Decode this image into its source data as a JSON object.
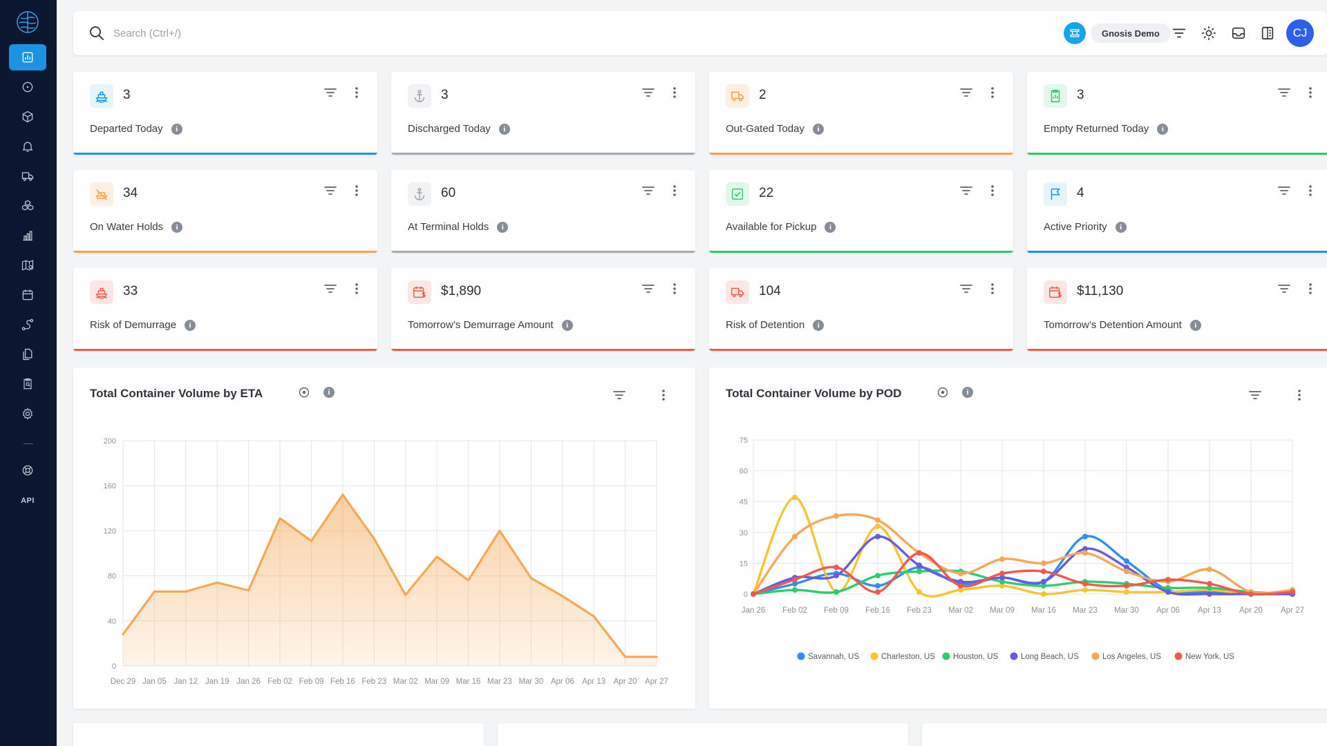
{
  "search": {
    "placeholder": "Search (Ctrl+/)"
  },
  "topbar": {
    "workspace": "Gnosis Demo",
    "avatar_initials": "CJ"
  },
  "sidebar": {
    "items": [
      "dashboard-icon",
      "compass-icon",
      "box-icon",
      "bell-icon",
      "truck-icon",
      "containers-icon",
      "bar-chart-icon",
      "map-search-icon",
      "calendar-icon",
      "route-icon",
      "documents-icon",
      "clipboard-search-icon",
      "gear-icon",
      "support-icon"
    ],
    "api_label": "API"
  },
  "kpis": [
    {
      "value": "3",
      "label": "Departed Today",
      "color": "#1b93e0",
      "icon": "ship-icon",
      "tint": "#e6f4fc"
    },
    {
      "value": "3",
      "label": "Discharged Today",
      "color": "#a5a9b0",
      "icon": "anchor-icon",
      "tint": "#f1f2f4"
    },
    {
      "value": "2",
      "label": "Out-Gated Today",
      "color": "#f5a24a",
      "icon": "truck-icon",
      "tint": "#fdf0e2"
    },
    {
      "value": "3",
      "label": "Empty Returned Today",
      "color": "#2ec76a",
      "icon": "clipboard-icon",
      "tint": "#e3f7ea"
    },
    {
      "value": "34",
      "label": "On Water Holds",
      "color": "#f5a24a",
      "icon": "ship-hold-icon",
      "tint": "#fdf0e2"
    },
    {
      "value": "60",
      "label": "At Terminal Holds",
      "color": "#a5a9b0",
      "icon": "anchor-icon",
      "tint": "#f1f2f4"
    },
    {
      "value": "22",
      "label": "Available for Pickup",
      "color": "#2ec76a",
      "icon": "check-icon",
      "tint": "#e3f7ea"
    },
    {
      "value": "4",
      "label": "Active Priority",
      "color": "#1b93e0",
      "icon": "flag-icon",
      "tint": "#e6f4fc"
    },
    {
      "value": "33",
      "label": "Risk of Demurrage",
      "color": "#ef5a4c",
      "icon": "ship-risk-icon",
      "tint": "#fde7e5"
    },
    {
      "value": "$1,890",
      "label": "Tomorrow’s Demurrage Amount",
      "color": "#ef5a4c",
      "icon": "calendar-dollar-icon",
      "tint": "#fde7e5"
    },
    {
      "value": "104",
      "label": "Risk of Detention",
      "color": "#ef5a4c",
      "icon": "truck-risk-icon",
      "tint": "#fde7e5"
    },
    {
      "value": "$11,130",
      "label": "Tomorrow’s Detention Amount",
      "color": "#ef5a4c",
      "icon": "calendar-dollar-icon",
      "tint": "#fde7e5"
    }
  ],
  "panels": {
    "eta_title": "Total Container Volume by ETA",
    "pod_title": "Total Container Volume by POD"
  },
  "chart_data": [
    {
      "type": "area",
      "title": "Total Container Volume by ETA",
      "categories": [
        "Dec 29",
        "Jan 05",
        "Jan 12",
        "Jan 19",
        "Jan 26",
        "Feb 02",
        "Feb 09",
        "Feb 16",
        "Feb 23",
        "Mar 02",
        "Mar 09",
        "Mar 16",
        "Mar 23",
        "Mar 30",
        "Apr 06",
        "Apr 13",
        "Apr 20",
        "Apr 27"
      ],
      "values": [
        28,
        66,
        66,
        74,
        67,
        131,
        111,
        152,
        113,
        63,
        97,
        76,
        120,
        78,
        62,
        44,
        8,
        8
      ],
      "ylim": [
        0,
        200
      ],
      "yticks": [
        0,
        40,
        80,
        120,
        160,
        200
      ],
      "color": "#f5a857",
      "grid": true
    },
    {
      "type": "line",
      "title": "Total Container Volume by POD",
      "categories": [
        "Jan 26",
        "Feb 02",
        "Feb 09",
        "Feb 16",
        "Feb 23",
        "Mar 02",
        "Mar 09",
        "Mar 16",
        "Mar 23",
        "Mar 30",
        "Apr 06",
        "Apr 13",
        "Apr 20",
        "Apr 27"
      ],
      "ylim": [
        0,
        75
      ],
      "yticks": [
        0,
        15,
        30,
        45,
        60,
        75
      ],
      "grid": true,
      "legend": "bottom",
      "series": [
        {
          "name": "Savannah, US",
          "color": "#2e8ff0",
          "values": [
            0,
            5,
            10,
            4,
            13,
            5,
            8,
            6,
            28,
            16,
            2,
            1,
            0,
            0
          ]
        },
        {
          "name": "Charleston, US",
          "color": "#f7c531",
          "values": [
            0,
            47,
            1,
            33,
            1,
            2,
            4,
            0,
            2,
            1,
            1,
            2,
            0,
            1
          ]
        },
        {
          "name": "Houston, US",
          "color": "#2ecc71",
          "values": [
            0,
            2,
            1,
            9,
            11,
            11,
            6,
            4,
            6,
            5,
            3,
            3,
            1,
            0
          ]
        },
        {
          "name": "Long Beach, US",
          "color": "#6a5ae0",
          "values": [
            0,
            8,
            9,
            28,
            14,
            6,
            8,
            6,
            22,
            13,
            1,
            0,
            0,
            0
          ]
        },
        {
          "name": "Los Angeles, US",
          "color": "#f5a857",
          "values": [
            0,
            28,
            38,
            36,
            20,
            10,
            17,
            15,
            20,
            11,
            6,
            12,
            1,
            2
          ]
        },
        {
          "name": "New York, US",
          "color": "#ee5a4e",
          "values": [
            0,
            7,
            13,
            1,
            20,
            4,
            10,
            11,
            5,
            4,
            7,
            5,
            0,
            1
          ]
        }
      ]
    }
  ]
}
